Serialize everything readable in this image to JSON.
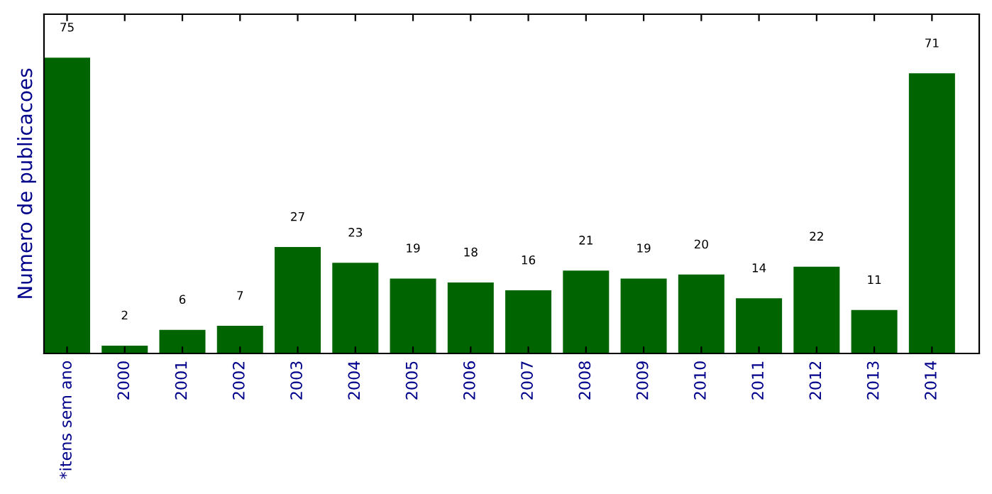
{
  "chart_data": {
    "type": "bar",
    "ylabel": "Numero de publicacoes",
    "categories": [
      "*itens sem ano",
      "2000",
      "2001",
      "2002",
      "2003",
      "2004",
      "2005",
      "2006",
      "2007",
      "2008",
      "2009",
      "2010",
      "2011",
      "2012",
      "2013",
      "2014"
    ],
    "values": [
      75,
      2,
      6,
      7,
      27,
      23,
      19,
      18,
      16,
      21,
      19,
      20,
      14,
      22,
      11,
      71
    ],
    "color": "#006400",
    "ylim": [
      0,
      86
    ],
    "data_labels": true,
    "tick_labels": "x",
    "grid": false,
    "legend": false
  }
}
